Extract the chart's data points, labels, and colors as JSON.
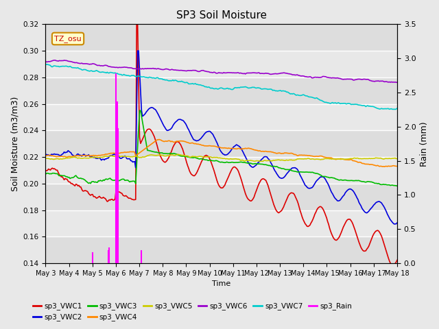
{
  "title": "SP3 Soil Moisture",
  "xlabel": "Time",
  "ylabel_left": "Soil Moisture (m3/m3)",
  "ylabel_right": "Rain (mm)",
  "ylim_left": [
    0.14,
    0.32
  ],
  "ylim_right": [
    0.0,
    3.5
  ],
  "bg_color": "#d8d8d8",
  "plot_bg_color": "#e8e8e8",
  "timezone_label": "TZ_osu",
  "x_tick_labels": [
    "May 3",
    "May 4",
    "May 5",
    "May 6",
    "May 7",
    "May 8",
    "May 9",
    "May 10",
    "May 11",
    "May 12",
    "May 13",
    "May 14",
    "May 15",
    "May 16",
    "May 17",
    "May 18"
  ],
  "legend_row1_labels": [
    "sp3_VWC1",
    "sp3_VWC2",
    "sp3_VWC3",
    "sp3_VWC4",
    "sp3_VWC5",
    "sp3_VWC6"
  ],
  "legend_row2_labels": [
    "sp3_VWC7",
    "sp3_Rain"
  ],
  "legend_colors": [
    "#dd0000",
    "#0000dd",
    "#00bb00",
    "#ff8800",
    "#cccc00",
    "#9900cc",
    "#00cccc",
    "#ff00ff"
  ],
  "vwc_colors": [
    "#dd0000",
    "#0000dd",
    "#00bb00",
    "#ff8800",
    "#cccc00",
    "#9900cc",
    "#00cccc"
  ],
  "rain_color": "#ff00ff"
}
